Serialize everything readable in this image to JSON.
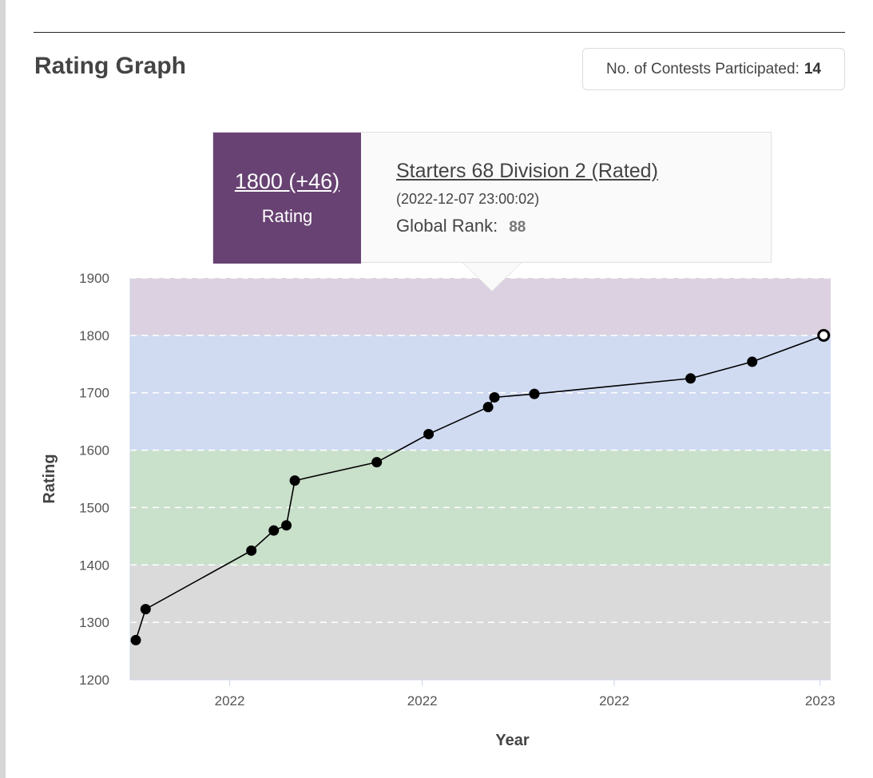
{
  "header": {
    "title": "Rating Graph",
    "contests_label": "No. of Contests Participated:",
    "contests_count": "14"
  },
  "tooltip": {
    "rating": "1800 (+46)",
    "rating_label": "Rating",
    "contest_name": "Starters 68 Division 2 (Rated)",
    "date": "(2022-12-07 23:00:02)",
    "rank_label": "Global Rank:",
    "rank_value": "88"
  },
  "chart_data": {
    "type": "line",
    "title": "",
    "xlabel": "Year",
    "ylabel": "Rating",
    "ylim": [
      1200,
      1900
    ],
    "yticks": [
      1200,
      1300,
      1400,
      1500,
      1600,
      1700,
      1800,
      1900
    ],
    "xlim": [
      0,
      1
    ],
    "xticks": [
      {
        "x": 0.142,
        "label": "2022"
      },
      {
        "x": 0.417,
        "label": "2022"
      },
      {
        "x": 0.691,
        "label": "2022"
      },
      {
        "x": 0.985,
        "label": "2023"
      }
    ],
    "bands": [
      {
        "from": 1200,
        "to": 1400,
        "color": "#dadada"
      },
      {
        "from": 1400,
        "to": 1600,
        "color": "#c9e0cb"
      },
      {
        "from": 1600,
        "to": 1800,
        "color": "#d0dbf2"
      },
      {
        "from": 1800,
        "to": 1900,
        "color": "#dcd1e0"
      }
    ],
    "series": [
      {
        "name": "Rating",
        "x": [
          0.008,
          0.022,
          0.173,
          0.205,
          0.223,
          0.235,
          0.352,
          0.426,
          0.511,
          0.52,
          0.577,
          0.8,
          0.888,
          0.99
        ],
        "values": [
          1269,
          1323,
          1425,
          1460,
          1469,
          1547,
          1579,
          1628,
          1675,
          1692,
          1698,
          1725,
          1754,
          1800
        ]
      }
    ],
    "highlighted_index": 13
  }
}
